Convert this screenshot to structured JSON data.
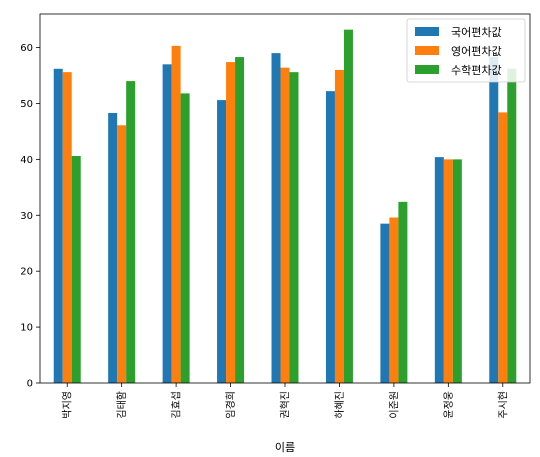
{
  "chart_data": {
    "type": "bar",
    "xlabel": "이름",
    "ylabel": "",
    "ylim": [
      0,
      66
    ],
    "yticks": [
      0,
      10,
      20,
      30,
      40,
      50,
      60
    ],
    "categories": [
      "박지영",
      "김태함",
      "김효섭",
      "임경희",
      "권혁진",
      "하혜진",
      "이준원",
      "윤정웅",
      "주시현"
    ],
    "series": [
      {
        "name": "국어편차값",
        "color": "#1f77b4",
        "values": [
          56.2,
          48.3,
          57.0,
          50.6,
          59.0,
          52.2,
          28.5,
          40.4,
          58.3
        ]
      },
      {
        "name": "영어편차값",
        "color": "#ff7f0e",
        "values": [
          55.6,
          46.1,
          60.3,
          57.4,
          56.4,
          56.0,
          29.6,
          40.0,
          48.4
        ]
      },
      {
        "name": "수학편차값",
        "color": "#2ca02c",
        "values": [
          40.6,
          54.0,
          51.8,
          58.3,
          55.6,
          63.2,
          32.4,
          40.0,
          56.2
        ]
      }
    ],
    "legend_position": "top-right",
    "grid": false
  }
}
